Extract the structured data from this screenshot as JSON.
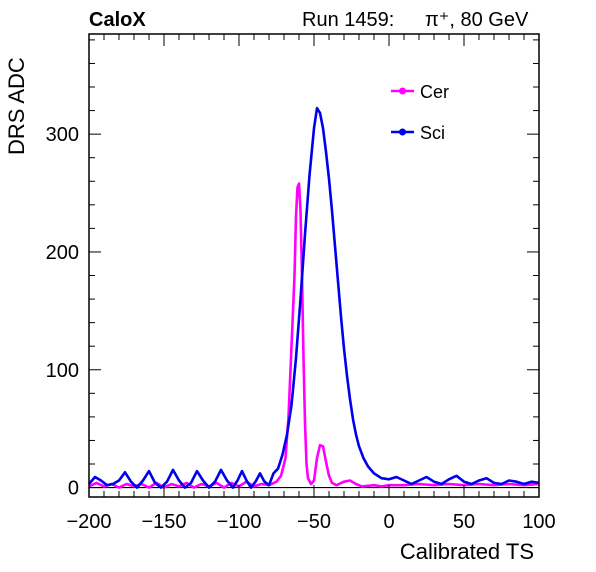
{
  "header": {
    "brand": "CaloX",
    "run_label": "Run 1459:",
    "particle": "π⁺, 80 GeV"
  },
  "chart_data": {
    "type": "line",
    "xlabel": "Calibrated TS",
    "ylabel": "DRS ADC",
    "xlim": [
      -200,
      100
    ],
    "ylim": [
      -8,
      385
    ],
    "xticks": [
      -200,
      -150,
      -100,
      -50,
      0,
      50,
      100
    ],
    "xtick_labels": [
      "−200",
      "−150",
      "−100",
      "−50",
      "0",
      "50",
      "100"
    ],
    "yticks": [
      0,
      100,
      200,
      300
    ],
    "ytick_labels": [
      "0",
      "100",
      "200",
      "300"
    ],
    "grid": false,
    "legend_position": "top-right",
    "reference_line_y": 0,
    "series": [
      {
        "name": "Cer",
        "color": "#ff00ff",
        "points": [
          [
            -200,
            1
          ],
          [
            -195,
            4
          ],
          [
            -190,
            1
          ],
          [
            -185,
            3
          ],
          [
            -180,
            0
          ],
          [
            -175,
            3
          ],
          [
            -170,
            1
          ],
          [
            -165,
            3
          ],
          [
            -160,
            0
          ],
          [
            -155,
            4
          ],
          [
            -150,
            0
          ],
          [
            -145,
            3
          ],
          [
            -140,
            1
          ],
          [
            -135,
            4
          ],
          [
            -130,
            0
          ],
          [
            -125,
            3
          ],
          [
            -120,
            1
          ],
          [
            -115,
            4
          ],
          [
            -110,
            0
          ],
          [
            -105,
            4
          ],
          [
            -100,
            1
          ],
          [
            -95,
            5
          ],
          [
            -90,
            1
          ],
          [
            -85,
            3
          ],
          [
            -80,
            2
          ],
          [
            -75,
            5
          ],
          [
            -72,
            10
          ],
          [
            -69,
            25
          ],
          [
            -67,
            60
          ],
          [
            -65,
            120
          ],
          [
            -63,
            180
          ],
          [
            -62,
            230
          ],
          [
            -61,
            255
          ],
          [
            -60,
            258
          ],
          [
            -59,
            235
          ],
          [
            -58,
            180
          ],
          [
            -57,
            110
          ],
          [
            -56,
            55
          ],
          [
            -55,
            20
          ],
          [
            -54,
            8
          ],
          [
            -52,
            3
          ],
          [
            -50,
            6
          ],
          [
            -48,
            25
          ],
          [
            -46,
            36
          ],
          [
            -44,
            35
          ],
          [
            -42,
            22
          ],
          [
            -40,
            10
          ],
          [
            -38,
            4
          ],
          [
            -35,
            2
          ],
          [
            -30,
            5
          ],
          [
            -26,
            6
          ],
          [
            -22,
            3
          ],
          [
            -18,
            1
          ],
          [
            -10,
            2
          ],
          [
            -5,
            1
          ],
          [
            0,
            2
          ],
          [
            10,
            2
          ],
          [
            20,
            3
          ],
          [
            30,
            2
          ],
          [
            40,
            3
          ],
          [
            50,
            2
          ],
          [
            60,
            3
          ],
          [
            70,
            2
          ],
          [
            80,
            3
          ],
          [
            90,
            2
          ],
          [
            100,
            3
          ]
        ]
      },
      {
        "name": "Sci",
        "color": "#0000ee",
        "points": [
          [
            -200,
            3
          ],
          [
            -196,
            9
          ],
          [
            -192,
            6
          ],
          [
            -188,
            2
          ],
          [
            -184,
            3
          ],
          [
            -180,
            6
          ],
          [
            -176,
            13
          ],
          [
            -172,
            5
          ],
          [
            -168,
            0
          ],
          [
            -164,
            6
          ],
          [
            -160,
            14
          ],
          [
            -156,
            4
          ],
          [
            -152,
            0
          ],
          [
            -148,
            5
          ],
          [
            -144,
            15
          ],
          [
            -140,
            6
          ],
          [
            -136,
            0
          ],
          [
            -132,
            4
          ],
          [
            -128,
            14
          ],
          [
            -124,
            6
          ],
          [
            -120,
            0
          ],
          [
            -116,
            5
          ],
          [
            -112,
            15
          ],
          [
            -108,
            6
          ],
          [
            -104,
            0
          ],
          [
            -101,
            6
          ],
          [
            -98,
            14
          ],
          [
            -95,
            6
          ],
          [
            -92,
            0
          ],
          [
            -89,
            5
          ],
          [
            -86,
            12
          ],
          [
            -83,
            5
          ],
          [
            -80,
            2
          ],
          [
            -77,
            12
          ],
          [
            -74,
            16
          ],
          [
            -71,
            28
          ],
          [
            -68,
            45
          ],
          [
            -65,
            70
          ],
          [
            -62,
            110
          ],
          [
            -59,
            160
          ],
          [
            -56,
            215
          ],
          [
            -53,
            265
          ],
          [
            -50,
            305
          ],
          [
            -48,
            322
          ],
          [
            -46,
            318
          ],
          [
            -44,
            305
          ],
          [
            -42,
            285
          ],
          [
            -40,
            262
          ],
          [
            -38,
            235
          ],
          [
            -36,
            205
          ],
          [
            -34,
            175
          ],
          [
            -32,
            145
          ],
          [
            -30,
            118
          ],
          [
            -28,
            95
          ],
          [
            -26,
            75
          ],
          [
            -24,
            58
          ],
          [
            -22,
            45
          ],
          [
            -20,
            35
          ],
          [
            -17,
            25
          ],
          [
            -14,
            18
          ],
          [
            -10,
            12
          ],
          [
            -5,
            8
          ],
          [
            0,
            7
          ],
          [
            5,
            9
          ],
          [
            10,
            6
          ],
          [
            15,
            3
          ],
          [
            20,
            6
          ],
          [
            25,
            9
          ],
          [
            30,
            5
          ],
          [
            35,
            3
          ],
          [
            40,
            7
          ],
          [
            45,
            10
          ],
          [
            50,
            5
          ],
          [
            55,
            3
          ],
          [
            60,
            6
          ],
          [
            65,
            8
          ],
          [
            70,
            4
          ],
          [
            75,
            3
          ],
          [
            80,
            6
          ],
          [
            85,
            5
          ],
          [
            90,
            3
          ],
          [
            95,
            5
          ],
          [
            100,
            4
          ]
        ]
      }
    ]
  }
}
